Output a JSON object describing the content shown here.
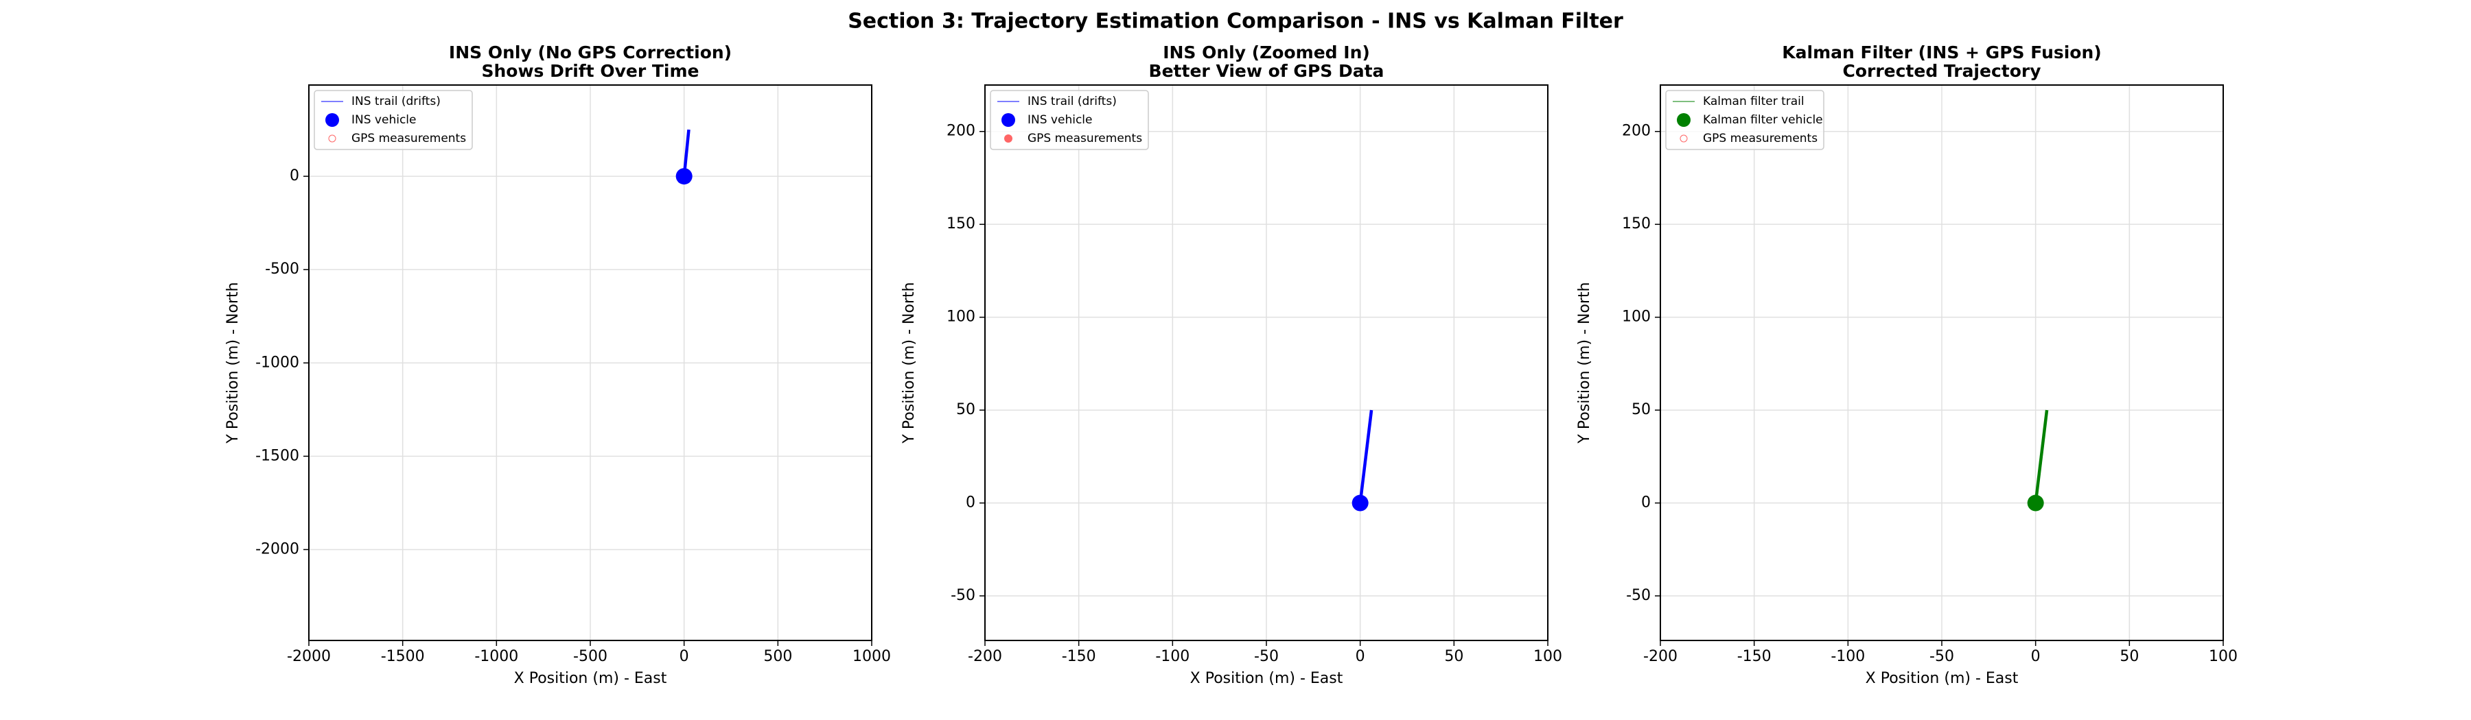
{
  "title": "Section 3: Trajectory Estimation Comparison - INS vs Kalman Filter",
  "chart_data": [
    {
      "type": "line",
      "title": "INS Only (No GPS Correction)",
      "subtitle": "Shows Drift Over Time",
      "xlabel": "X Position (m) - East",
      "ylabel": "Y Position (m) - North",
      "xlim": [
        -2000,
        1000
      ],
      "xticks": [
        -2000,
        -1500,
        -1000,
        -500,
        0,
        500,
        1000
      ],
      "ylim": [
        -2487,
        489
      ],
      "yticks": [
        -2000,
        -1500,
        -1000,
        -500,
        0
      ],
      "grid": true,
      "legend": "upper left",
      "series": [
        {
          "name": "INS trail (drifts)",
          "color": "#0000ff",
          "style": "line",
          "x": [
            0,
            25
          ],
          "values": [
            0,
            250
          ]
        },
        {
          "name": "INS vehicle",
          "color": "#0000ff",
          "style": "marker",
          "x": [
            0
          ],
          "values": [
            0
          ]
        },
        {
          "name": "GPS measurements",
          "color": "#ff0000",
          "style": "hollow",
          "x": [],
          "values": []
        }
      ]
    },
    {
      "type": "line",
      "title": "INS Only (Zoomed In)",
      "subtitle": "Better View of GPS Data",
      "xlabel": "X Position (m) - East",
      "ylabel": "Y Position (m) - North",
      "xlim": [
        -200,
        100
      ],
      "xticks": [
        -200,
        -150,
        -100,
        -50,
        0,
        50,
        100
      ],
      "ylim": [
        -74,
        225
      ],
      "yticks": [
        -50,
        0,
        50,
        100,
        150,
        200
      ],
      "grid": true,
      "legend": "upper left",
      "series": [
        {
          "name": "INS trail (drifts)",
          "color": "#0000ff",
          "style": "line",
          "x": [
            0,
            6
          ],
          "values": [
            0,
            50
          ]
        },
        {
          "name": "INS vehicle",
          "color": "#0000ff",
          "style": "marker",
          "x": [
            0
          ],
          "values": [
            0
          ]
        },
        {
          "name": "GPS measurements",
          "color": "#ff0000",
          "style": "filled",
          "x": [],
          "values": []
        }
      ]
    },
    {
      "type": "line",
      "title": "Kalman Filter (INS + GPS Fusion)",
      "subtitle": "Corrected Trajectory",
      "xlabel": "X Position (m) - East",
      "ylabel": "Y Position (m) - North",
      "xlim": [
        -200,
        100
      ],
      "xticks": [
        -200,
        -150,
        -100,
        -50,
        0,
        50,
        100
      ],
      "ylim": [
        -74,
        225
      ],
      "yticks": [
        -50,
        0,
        50,
        100,
        150,
        200
      ],
      "grid": true,
      "legend": "upper left",
      "series": [
        {
          "name": "Kalman filter trail",
          "color": "#008000",
          "style": "line",
          "x": [
            0,
            6
          ],
          "values": [
            0,
            50
          ]
        },
        {
          "name": "Kalman filter vehicle",
          "color": "#008000",
          "style": "marker",
          "x": [
            0
          ],
          "values": [
            0
          ]
        },
        {
          "name": "GPS measurements",
          "color": "#ff0000",
          "style": "hollow",
          "x": [],
          "values": []
        }
      ]
    }
  ]
}
